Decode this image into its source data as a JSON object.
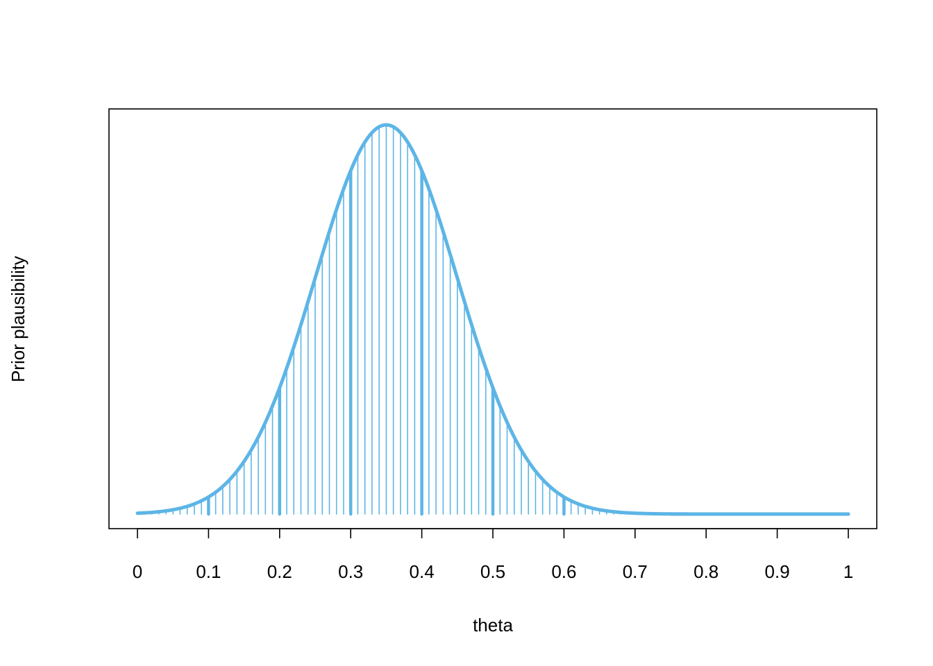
{
  "chart_data": {
    "type": "line",
    "title": "",
    "xlabel": "theta",
    "ylabel": "Prior plausibility",
    "xlim": [
      0,
      1
    ],
    "ylim": [
      0,
      1
    ],
    "x_ticks": [
      "0",
      "0.1",
      "0.2",
      "0.3",
      "0.4",
      "0.5",
      "0.6",
      "0.7",
      "0.8",
      "0.9",
      "1"
    ],
    "y_ticks_shown": false,
    "grid": false,
    "legend": "none",
    "color": "#5DB5E6",
    "density_mean": 0.35,
    "density_sd": 0.1,
    "spike_grid_step": 0.01,
    "spike_grid_range": [
      0,
      1
    ],
    "highlighted_spikes_step": 0.1
  }
}
